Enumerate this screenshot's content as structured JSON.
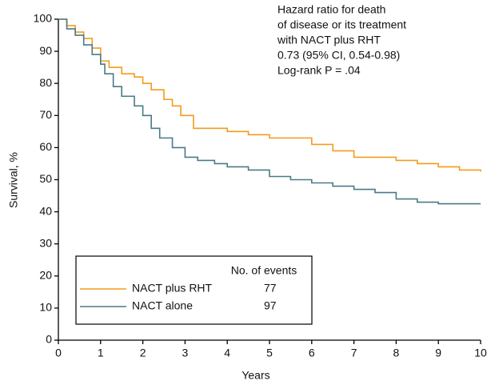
{
  "chart_data": {
    "type": "step",
    "xlabel": "Years",
    "ylabel": "Survival, %",
    "annotation": [
      "Hazard ratio for death",
      "of disease or its treatment",
      "with NACT plus RHT",
      "0.73 (95% CI, 0.54-0.98)",
      "Log-rank P = .04"
    ],
    "legend_title": "No. of events",
    "series": [
      {
        "name": "NACT plus RHT",
        "color": "#f59b1c",
        "events": 77,
        "x": [
          0,
          0.2,
          0.4,
          0.6,
          0.8,
          1.0,
          1.2,
          1.5,
          1.8,
          2.0,
          2.2,
          2.5,
          2.7,
          2.9,
          3.2,
          3.6,
          4.0,
          4.5,
          5.0,
          5.5,
          6.0,
          6.5,
          7.0,
          7.5,
          8.0,
          8.5,
          9.0,
          9.5,
          10
        ],
        "values": [
          100,
          98,
          96,
          94,
          91,
          87,
          85,
          83,
          82,
          80,
          78,
          75,
          73,
          70,
          66,
          66,
          65,
          64,
          63,
          63,
          61,
          59,
          57,
          57,
          56,
          55,
          54,
          53,
          52.5
        ]
      },
      {
        "name": "NACT alone",
        "color": "#4a7a87",
        "events": 97,
        "x": [
          0,
          0.2,
          0.4,
          0.6,
          0.8,
          1.0,
          1.1,
          1.3,
          1.5,
          1.8,
          2.0,
          2.2,
          2.4,
          2.7,
          3.0,
          3.3,
          3.7,
          4.0,
          4.5,
          5.0,
          5.5,
          6.0,
          6.5,
          7.0,
          7.5,
          8.0,
          8.5,
          9.0,
          10
        ],
        "values": [
          100,
          97,
          95,
          92,
          89,
          86,
          83,
          79,
          76,
          73,
          70,
          66,
          63,
          60,
          57,
          56,
          55,
          54,
          53,
          51,
          50,
          49,
          48,
          47,
          46,
          44,
          43,
          42.5,
          42.5
        ]
      }
    ],
    "xlim": [
      0,
      10
    ],
    "xticks": [
      0,
      1,
      2,
      3,
      4,
      5,
      6,
      7,
      8,
      9,
      10
    ],
    "ylim": [
      0,
      100
    ],
    "yticks": [
      0,
      10,
      20,
      30,
      40,
      50,
      60,
      70,
      80,
      90,
      100
    ],
    "grid": false
  }
}
